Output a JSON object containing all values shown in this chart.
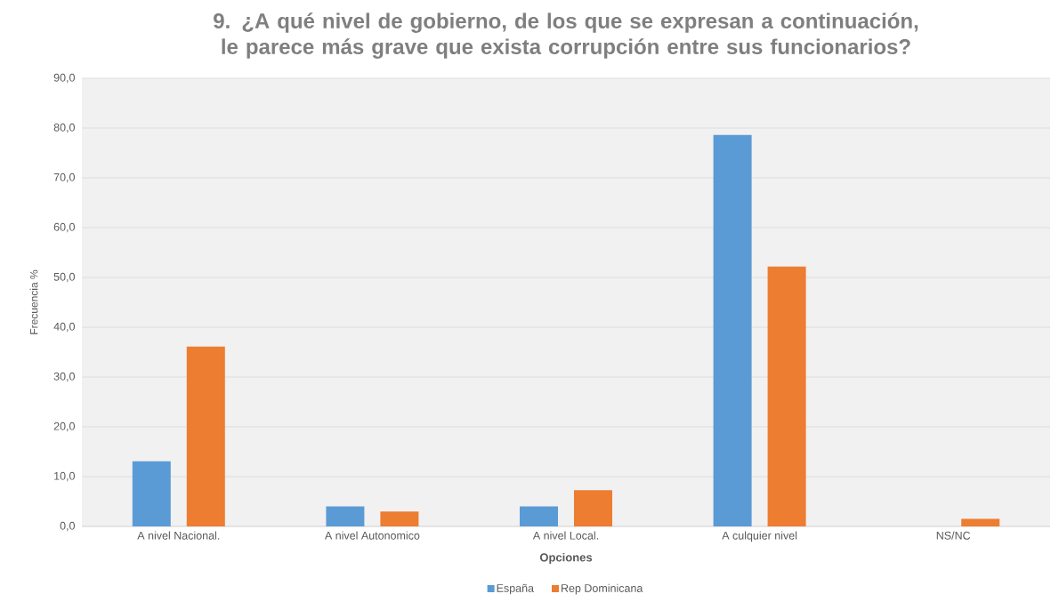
{
  "chart_data": {
    "type": "bar",
    "title": "9. ¿A qué nivel de gobierno, de los que se expresan a continuación, le parece más grave que exista corrupción entre sus funcionarios?",
    "xlabel": "Opciones",
    "ylabel": "Frecuencia %",
    "categories": [
      "A nivel Nacional.",
      "A nivel Autonomico",
      "A nivel Local.",
      "A culquier nivel",
      "NS/NC"
    ],
    "series": [
      {
        "name": "España",
        "color": "#5b9bd5",
        "values": [
          13.1,
          4.0,
          4.0,
          78.6,
          0
        ]
      },
      {
        "name": "Rep Dominicana",
        "color": "#ed7d31",
        "values": [
          36.1,
          3.0,
          7.3,
          52.2,
          1.5
        ]
      }
    ],
    "ylim": [
      0,
      90
    ],
    "yticks": [
      {
        "value": 0,
        "label": "0,0"
      },
      {
        "value": 10,
        "label": "10,0"
      },
      {
        "value": 20,
        "label": "20,0"
      },
      {
        "value": 30,
        "label": "30,0"
      },
      {
        "value": 40,
        "label": "40,0"
      },
      {
        "value": 50,
        "label": "50,0"
      },
      {
        "value": 60,
        "label": "60,0"
      },
      {
        "value": 70,
        "label": "70,0"
      },
      {
        "value": 80,
        "label": "80,0"
      },
      {
        "value": 90,
        "label": "90,0"
      }
    ],
    "grid": "y",
    "legend": "bottom"
  }
}
